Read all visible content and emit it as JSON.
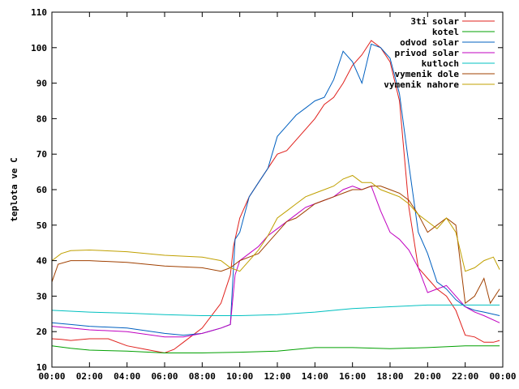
{
  "chart_data": {
    "type": "line",
    "title": "",
    "xlabel": "",
    "ylabel": "teplota ve C",
    "ylim": [
      10,
      110
    ],
    "yticks": [
      10,
      20,
      30,
      40,
      50,
      60,
      70,
      80,
      90,
      100,
      110
    ],
    "xlim": [
      "00:00",
      "24:00"
    ],
    "xticks": [
      "00:00",
      "02:00",
      "04:00",
      "06:00",
      "08:00",
      "10:00",
      "12:00",
      "14:00",
      "16:00",
      "18:00",
      "20:00",
      "22:00",
      "00:00"
    ],
    "grid": false,
    "legend_position": "top-right",
    "series": [
      {
        "name": "3ti solar",
        "color": "#e0201c",
        "x": [
          "00:00",
          "00:30",
          "01:00",
          "02:00",
          "03:00",
          "04:00",
          "05:00",
          "06:00",
          "06:30",
          "07:00",
          "08:00",
          "09:00",
          "09:30",
          "09:40",
          "10:00",
          "10:30",
          "11:00",
          "12:00",
          "12:30",
          "13:00",
          "14:00",
          "14:30",
          "15:00",
          "15:30",
          "16:00",
          "16:30",
          "17:00",
          "17:30",
          "18:00",
          "18:30",
          "19:00",
          "19:30",
          "20:00",
          "20:30",
          "21:00",
          "21:30",
          "22:00",
          "22:30",
          "23:00",
          "23:30",
          "23:50"
        ],
        "y": [
          18,
          17.8,
          17.5,
          18,
          18,
          16,
          15,
          14,
          15,
          17,
          21,
          28,
          36,
          44,
          52,
          58,
          62,
          70,
          71,
          74,
          80,
          84,
          86,
          90,
          95,
          98,
          102,
          100,
          96,
          85,
          55,
          38,
          35,
          32,
          30,
          26,
          19,
          18.5,
          17,
          17,
          17.5
        ]
      },
      {
        "name": "kotel",
        "color": "#00a000",
        "x": [
          "00:00",
          "01:00",
          "02:00",
          "04:00",
          "06:00",
          "08:00",
          "10:00",
          "12:00",
          "14:00",
          "16:00",
          "18:00",
          "20:00",
          "22:00",
          "23:50"
        ],
        "y": [
          16,
          15.3,
          14.8,
          14.5,
          14,
          14,
          14.2,
          14.5,
          15.5,
          15.5,
          15.2,
          15.5,
          16,
          16
        ]
      },
      {
        "name": "odvod solar",
        "color": "#0060c0",
        "x": [
          "00:00",
          "01:00",
          "02:00",
          "04:00",
          "06:00",
          "07:00",
          "08:00",
          "09:00",
          "09:30",
          "09:45",
          "10:00",
          "10:30",
          "11:00",
          "11:30",
          "12:00",
          "12:30",
          "13:00",
          "13:30",
          "14:00",
          "14:30",
          "15:00",
          "15:30",
          "16:00",
          "16:30",
          "17:00",
          "17:30",
          "18:00",
          "18:30",
          "19:00",
          "19:30",
          "20:00",
          "20:30",
          "21:00",
          "21:30",
          "22:00",
          "22:30",
          "23:00",
          "23:50"
        ],
        "y": [
          22.5,
          22,
          21.5,
          21,
          19.5,
          19,
          19.5,
          21,
          22,
          46,
          48,
          58,
          62,
          66,
          75,
          78,
          81,
          83,
          85,
          86,
          91,
          99,
          96,
          90,
          101,
          100,
          97,
          87,
          67,
          48,
          42,
          34,
          32,
          29,
          27,
          26,
          25.5,
          24.5
        ]
      },
      {
        "name": "privod solar",
        "color": "#c000c0",
        "x": [
          "00:00",
          "01:00",
          "02:00",
          "04:00",
          "06:00",
          "07:00",
          "08:00",
          "09:00",
          "09:30",
          "09:45",
          "10:00",
          "10:30",
          "11:00",
          "11:30",
          "12:00",
          "12:30",
          "13:00",
          "13:30",
          "14:00",
          "14:30",
          "15:00",
          "15:30",
          "16:00",
          "16:30",
          "17:00",
          "17:30",
          "18:00",
          "18:30",
          "19:00",
          "19:30",
          "20:00",
          "20:30",
          "21:00",
          "21:30",
          "22:00",
          "22:30",
          "23:00",
          "23:50"
        ],
        "y": [
          21.5,
          21,
          20.5,
          20,
          18.5,
          18.5,
          19.5,
          21,
          22,
          36,
          40,
          42,
          44,
          47,
          49,
          51,
          53,
          55,
          56,
          57,
          58,
          60,
          61,
          60,
          61,
          54,
          48,
          46,
          43,
          38,
          31,
          32,
          33,
          30,
          27,
          25.5,
          24.5,
          22.5
        ]
      },
      {
        "name": "kutloch",
        "color": "#00c0c0",
        "x": [
          "00:00",
          "02:00",
          "04:00",
          "06:00",
          "08:00",
          "10:00",
          "12:00",
          "14:00",
          "16:00",
          "18:00",
          "20:00",
          "22:00",
          "23:50"
        ],
        "y": [
          26,
          25.5,
          25.2,
          24.8,
          24.5,
          24.5,
          24.8,
          25.5,
          26.5,
          27,
          27.5,
          27.5,
          27.5
        ]
      },
      {
        "name": "vymenik dole",
        "color": "#a04000",
        "x": [
          "00:00",
          "00:20",
          "01:00",
          "02:00",
          "04:00",
          "06:00",
          "08:00",
          "09:00",
          "09:30",
          "10:00",
          "10:30",
          "11:00",
          "11:30",
          "12:00",
          "12:30",
          "13:00",
          "13:30",
          "14:00",
          "14:30",
          "15:00",
          "15:30",
          "16:00",
          "16:30",
          "17:00",
          "17:30",
          "18:00",
          "18:30",
          "19:00",
          "19:30",
          "20:00",
          "20:30",
          "21:00",
          "21:30",
          "22:00",
          "22:30",
          "23:00",
          "23:20",
          "23:50"
        ],
        "y": [
          34,
          39,
          40,
          40,
          39.5,
          38.5,
          38,
          37,
          38,
          40,
          41,
          42,
          45,
          48,
          51,
          52,
          54,
          56,
          57,
          58,
          59,
          60,
          60,
          61,
          61,
          60,
          59,
          57,
          53,
          48,
          50,
          52,
          50,
          28,
          30,
          35,
          28,
          32
        ]
      },
      {
        "name": "vymenik nahore",
        "color": "#c0a000",
        "x": [
          "00:00",
          "00:30",
          "01:00",
          "02:00",
          "04:00",
          "06:00",
          "08:00",
          "09:00",
          "09:30",
          "10:00",
          "10:30",
          "11:00",
          "11:30",
          "12:00",
          "12:30",
          "13:00",
          "13:30",
          "14:00",
          "14:30",
          "15:00",
          "15:30",
          "16:00",
          "16:30",
          "17:00",
          "17:30",
          "18:00",
          "18:30",
          "19:00",
          "19:30",
          "20:00",
          "20:30",
          "21:00",
          "21:30",
          "22:00",
          "22:30",
          "23:00",
          "23:30",
          "23:50"
        ],
        "y": [
          40,
          42,
          42.8,
          43,
          42.5,
          41.5,
          41,
          40,
          38,
          37,
          40,
          43,
          47,
          52,
          54,
          56,
          58,
          59,
          60,
          61,
          63,
          64,
          62,
          62,
          60,
          59,
          58,
          56,
          53,
          51,
          49,
          52,
          48,
          37,
          38,
          40,
          41,
          37.5
        ]
      }
    ]
  }
}
